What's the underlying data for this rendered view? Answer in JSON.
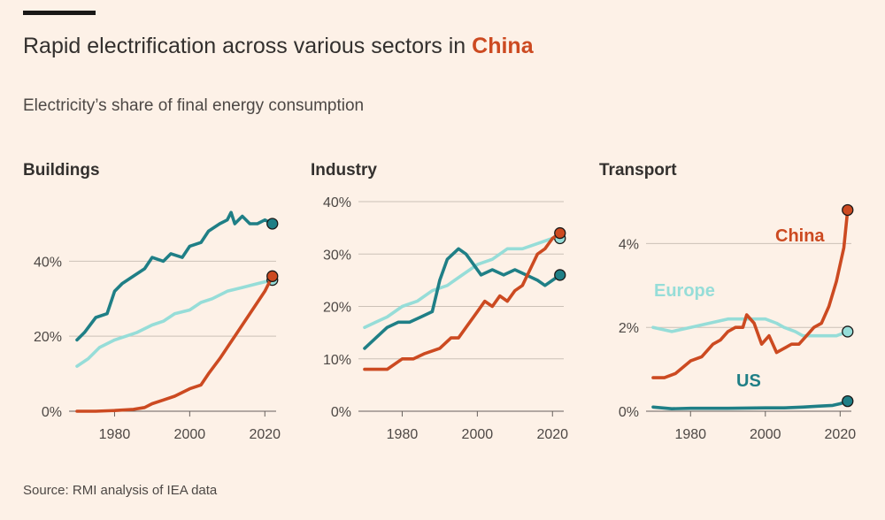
{
  "header": {
    "title_prefix": "Rapid electrification across various sectors in ",
    "title_highlight": "China",
    "subtitle": "Electricity’s share of final energy consumption",
    "source": "Source: RMI analysis of IEA data"
  },
  "colors": {
    "background": "#fdf1e7",
    "China": "#cc4a21",
    "Europe": "#96ddd8",
    "US": "#1f7f86"
  },
  "chart_data": [
    {
      "type": "line",
      "title": "Buildings",
      "xlabel": "",
      "ylabel": "",
      "xlim": [
        1970,
        2023
      ],
      "ylim": [
        0,
        54
      ],
      "xticks": [
        1980,
        2000,
        2020
      ],
      "yticks": [
        0,
        20,
        40
      ],
      "ytick_labels": [
        "0%",
        "20%",
        "40%"
      ],
      "grid": true,
      "series_labels_on_chart": false,
      "series": [
        {
          "name": "US",
          "x": [
            1970,
            1972,
            1975,
            1978,
            1980,
            1982,
            1985,
            1988,
            1990,
            1993,
            1995,
            1998,
            2000,
            2003,
            2005,
            2008,
            2010,
            2011,
            2012,
            2014,
            2016,
            2018,
            2020,
            2022
          ],
          "values": [
            19,
            21,
            25,
            26,
            32,
            34,
            36,
            38,
            41,
            40,
            42,
            41,
            44,
            45,
            48,
            50,
            51,
            53,
            50,
            52,
            50,
            50,
            51,
            50
          ]
        },
        {
          "name": "Europe",
          "x": [
            1970,
            1973,
            1976,
            1980,
            1983,
            1986,
            1990,
            1993,
            1996,
            2000,
            2003,
            2006,
            2010,
            2014,
            2018,
            2022
          ],
          "values": [
            12,
            14,
            17,
            19,
            20,
            21,
            23,
            24,
            26,
            27,
            29,
            30,
            32,
            33,
            34,
            35
          ]
        },
        {
          "name": "China",
          "x": [
            1970,
            1975,
            1980,
            1985,
            1988,
            1990,
            1993,
            1996,
            2000,
            2003,
            2005,
            2008,
            2010,
            2012,
            2014,
            2016,
            2018,
            2020,
            2022
          ],
          "values": [
            0,
            0,
            0.2,
            0.5,
            1,
            2,
            3,
            4,
            6,
            7,
            10,
            14,
            17,
            20,
            23,
            26,
            29,
            32,
            36
          ]
        }
      ]
    },
    {
      "type": "line",
      "title": "Industry",
      "xlabel": "",
      "ylabel": "",
      "xlim": [
        1970,
        2023
      ],
      "ylim": [
        0,
        40
      ],
      "xticks": [
        1980,
        2000,
        2020
      ],
      "yticks": [
        0,
        10,
        20,
        30,
        40
      ],
      "ytick_labels": [
        "0%",
        "10%",
        "20%",
        "30%",
        "40%"
      ],
      "grid": true,
      "series_labels_on_chart": false,
      "series": [
        {
          "name": "US",
          "x": [
            1970,
            1973,
            1976,
            1979,
            1982,
            1985,
            1988,
            1990,
            1992,
            1995,
            1997,
            1999,
            2001,
            2004,
            2007,
            2010,
            2013,
            2016,
            2018,
            2020,
            2022
          ],
          "values": [
            12,
            14,
            16,
            17,
            17,
            18,
            19,
            25,
            29,
            31,
            30,
            28,
            26,
            27,
            26,
            27,
            26,
            25,
            24,
            25,
            26
          ]
        },
        {
          "name": "Europe",
          "x": [
            1970,
            1973,
            1976,
            1980,
            1984,
            1988,
            1992,
            1996,
            2000,
            2004,
            2008,
            2012,
            2016,
            2020,
            2022
          ],
          "values": [
            16,
            17,
            18,
            20,
            21,
            23,
            24,
            26,
            28,
            29,
            31,
            31,
            32,
            33,
            33
          ]
        },
        {
          "name": "China",
          "x": [
            1970,
            1973,
            1976,
            1980,
            1983,
            1986,
            1990,
            1993,
            1995,
            1997,
            2000,
            2002,
            2004,
            2006,
            2008,
            2010,
            2012,
            2014,
            2016,
            2018,
            2020,
            2022
          ],
          "values": [
            8,
            8,
            8,
            10,
            10,
            11,
            12,
            14,
            14,
            16,
            19,
            21,
            20,
            22,
            21,
            23,
            24,
            27,
            30,
            31,
            33,
            34
          ]
        }
      ]
    },
    {
      "type": "line",
      "title": "Transport",
      "xlabel": "",
      "ylabel": "",
      "xlim": [
        1970,
        2023
      ],
      "ylim": [
        0,
        5
      ],
      "xticks": [
        1980,
        2000,
        2020
      ],
      "yticks": [
        0,
        2,
        4
      ],
      "ytick_labels": [
        "0%",
        "2%",
        "4%"
      ],
      "grid": true,
      "series_labels_on_chart": true,
      "series": [
        {
          "name": "China",
          "x": [
            1970,
            1973,
            1976,
            1980,
            1983,
            1986,
            1988,
            1990,
            1992,
            1994,
            1995,
            1997,
            1999,
            2001,
            2003,
            2005,
            2007,
            2009,
            2011,
            2013,
            2015,
            2017,
            2019,
            2021,
            2022
          ],
          "values": [
            0.8,
            0.8,
            0.9,
            1.2,
            1.3,
            1.6,
            1.7,
            1.9,
            2.0,
            2.0,
            2.3,
            2.1,
            1.6,
            1.8,
            1.4,
            1.5,
            1.6,
            1.6,
            1.8,
            2.0,
            2.1,
            2.5,
            3.1,
            3.9,
            4.8
          ]
        },
        {
          "name": "Europe",
          "x": [
            1970,
            1975,
            1980,
            1985,
            1990,
            1995,
            2000,
            2003,
            2005,
            2008,
            2010,
            2013,
            2016,
            2019,
            2022
          ],
          "values": [
            2.0,
            1.9,
            2.0,
            2.1,
            2.2,
            2.2,
            2.2,
            2.1,
            2.0,
            1.9,
            1.8,
            1.8,
            1.8,
            1.8,
            1.9
          ]
        },
        {
          "name": "US",
          "x": [
            1970,
            1975,
            1980,
            1990,
            2000,
            2005,
            2010,
            2014,
            2018,
            2020,
            2022
          ],
          "values": [
            0.1,
            0.06,
            0.07,
            0.07,
            0.08,
            0.08,
            0.1,
            0.12,
            0.14,
            0.18,
            0.24
          ]
        }
      ]
    }
  ]
}
